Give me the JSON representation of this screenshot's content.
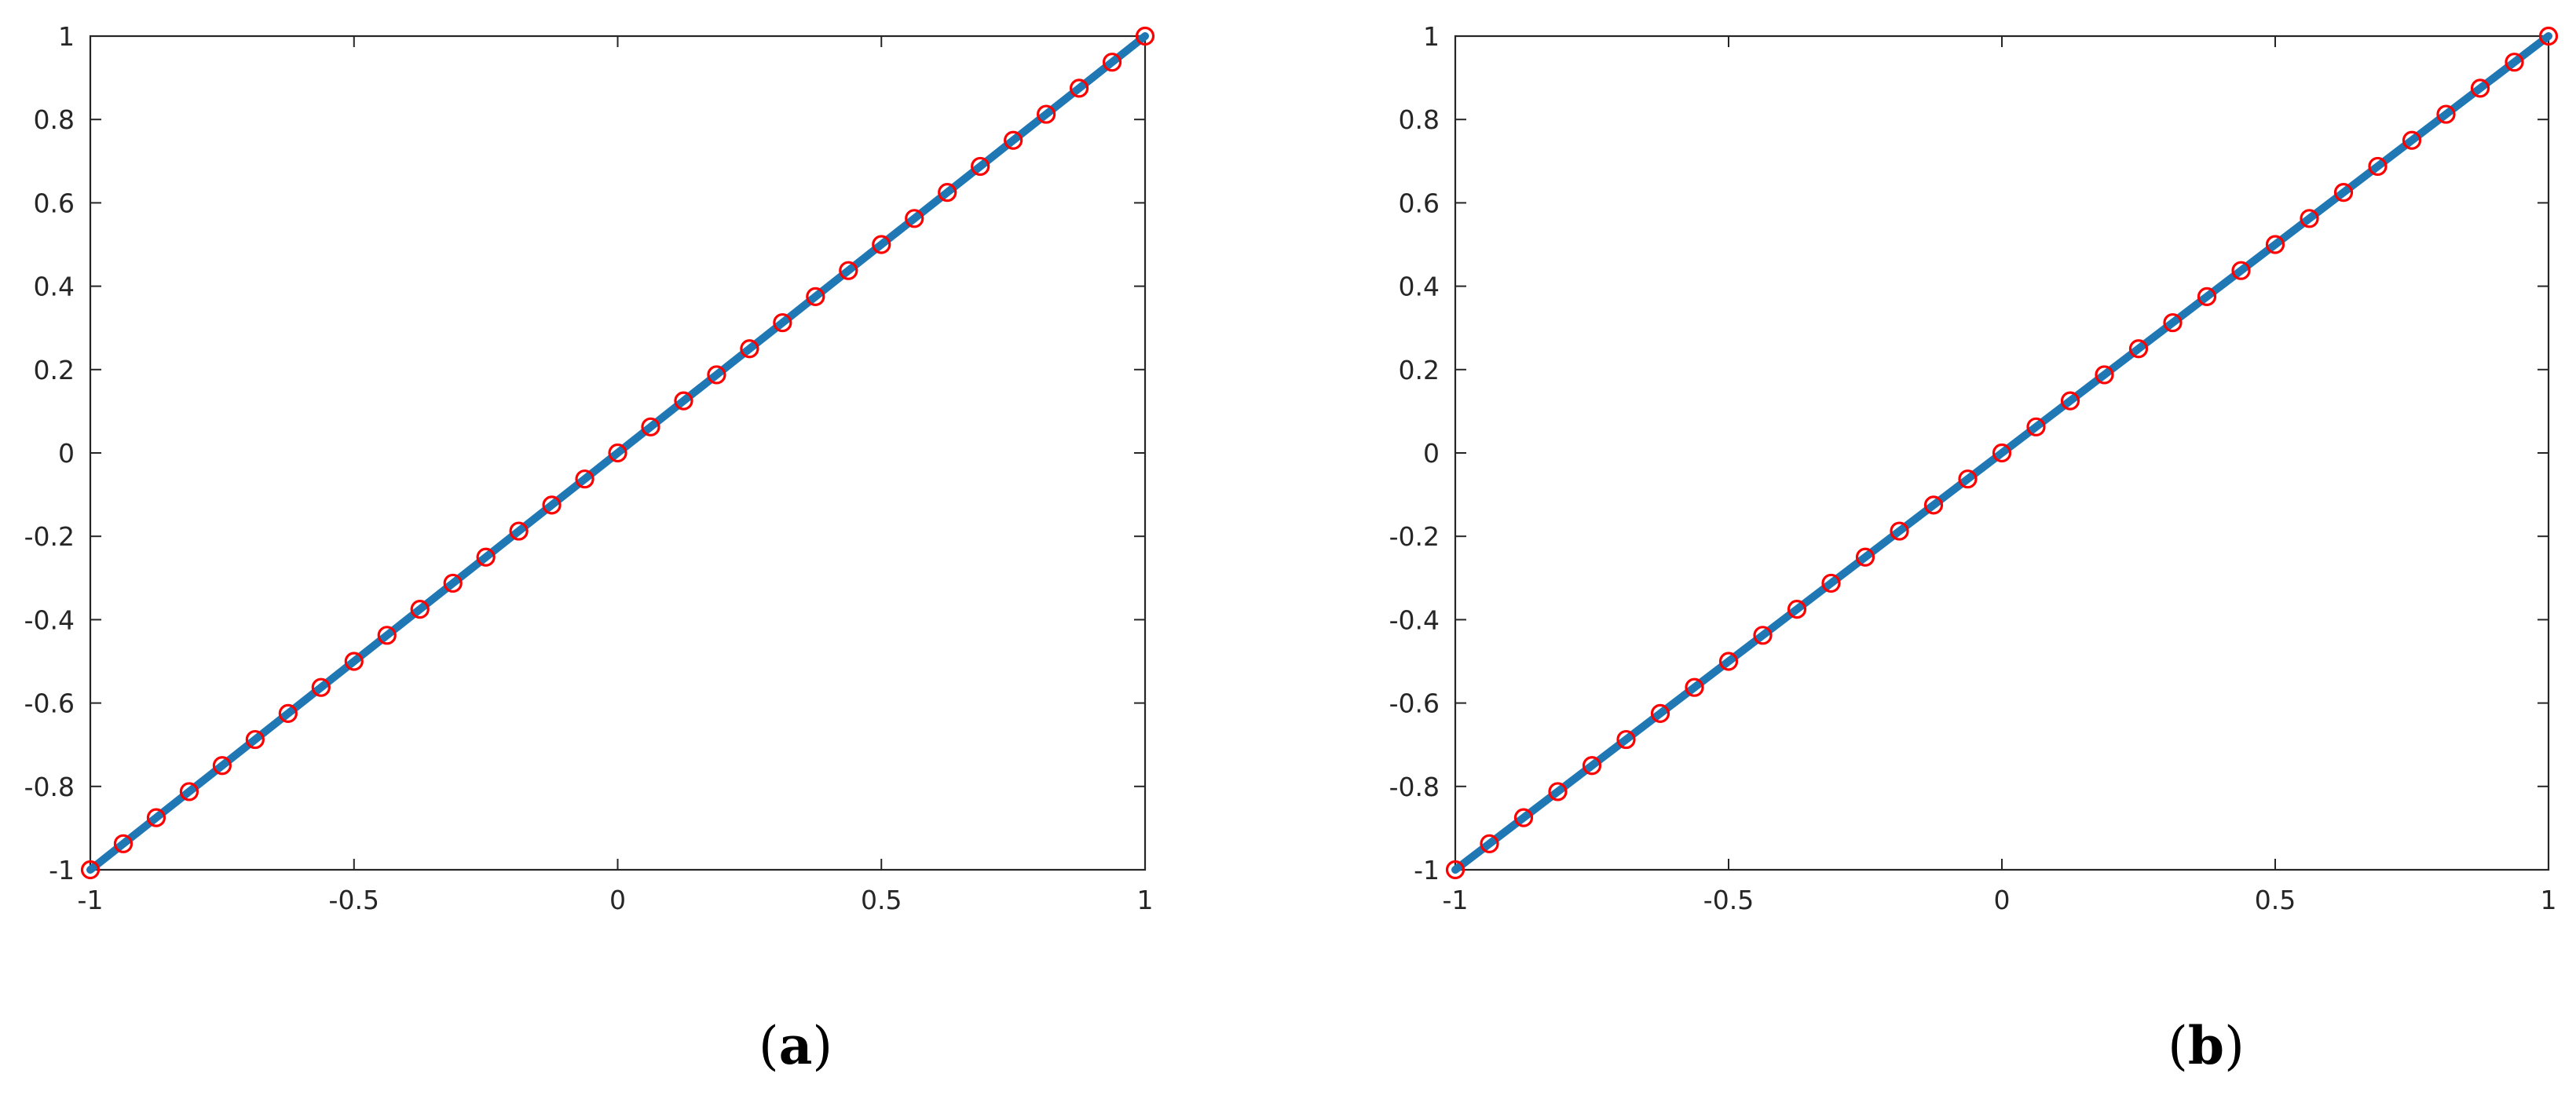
{
  "colors": {
    "line": "#1f77b4",
    "marker": "#ff0000",
    "axes": "#262626",
    "background": "#ffffff"
  },
  "chart_data": [
    {
      "type": "line",
      "panel_label": "a",
      "title": "",
      "xlabel": "",
      "ylabel": "",
      "xlim": [
        -1,
        1
      ],
      "ylim": [
        -1,
        1
      ],
      "grid": false,
      "xticks": [
        -1,
        -0.5,
        0,
        0.5,
        1
      ],
      "xtick_labels": [
        "-1",
        "-0.5",
        "0",
        "0.5",
        "1"
      ],
      "yticks": [
        -1,
        -0.8,
        -0.6,
        -0.4,
        -0.2,
        0,
        0.2,
        0.4,
        0.6,
        0.8,
        1
      ],
      "ytick_labels": [
        "-1",
        "-0.8",
        "-0.6",
        "-0.4",
        "-0.2",
        "0",
        "0.2",
        "0.4",
        "0.6",
        "0.8",
        "1"
      ],
      "series": [
        {
          "style": "solid line",
          "x": [
            -1,
            1
          ],
          "y": [
            -1,
            1
          ]
        },
        {
          "style": "circle markers",
          "x": [
            -1,
            -0.9375,
            -0.875,
            -0.8125,
            -0.75,
            -0.6875,
            -0.625,
            -0.5625,
            -0.5,
            -0.4375,
            -0.375,
            -0.3125,
            -0.25,
            -0.1875,
            -0.125,
            -0.0625,
            0,
            0.0625,
            0.125,
            0.1875,
            0.25,
            0.3125,
            0.375,
            0.4375,
            0.5,
            0.5625,
            0.625,
            0.6875,
            0.75,
            0.8125,
            0.875,
            0.9375,
            1
          ],
          "y": [
            -1,
            -0.9375,
            -0.875,
            -0.8125,
            -0.75,
            -0.6875,
            -0.625,
            -0.5625,
            -0.5,
            -0.4375,
            -0.375,
            -0.3125,
            -0.25,
            -0.1875,
            -0.125,
            -0.0625,
            0,
            0.0625,
            0.125,
            0.1875,
            0.25,
            0.3125,
            0.375,
            0.4375,
            0.5,
            0.5625,
            0.625,
            0.6875,
            0.75,
            0.8125,
            0.875,
            0.9375,
            1
          ]
        }
      ]
    },
    {
      "type": "line",
      "panel_label": "b",
      "title": "",
      "xlabel": "",
      "ylabel": "",
      "xlim": [
        -1,
        1
      ],
      "ylim": [
        -1,
        1
      ],
      "grid": false,
      "xticks": [
        -1,
        -0.5,
        0,
        0.5,
        1
      ],
      "xtick_labels": [
        "-1",
        "-0.5",
        "0",
        "0.5",
        "1"
      ],
      "yticks": [
        -1,
        -0.8,
        -0.6,
        -0.4,
        -0.2,
        0,
        0.2,
        0.4,
        0.6,
        0.8,
        1
      ],
      "ytick_labels": [
        "-1",
        "-0.8",
        "-0.6",
        "-0.4",
        "-0.2",
        "0",
        "0.2",
        "0.4",
        "0.6",
        "0.8",
        "1"
      ],
      "series": [
        {
          "style": "solid line",
          "x": [
            -1,
            1
          ],
          "y": [
            -1,
            1
          ]
        },
        {
          "style": "circle markers",
          "x": [
            -1,
            -0.9375,
            -0.875,
            -0.8125,
            -0.75,
            -0.6875,
            -0.625,
            -0.5625,
            -0.5,
            -0.4375,
            -0.375,
            -0.3125,
            -0.25,
            -0.1875,
            -0.125,
            -0.0625,
            0,
            0.0625,
            0.125,
            0.1875,
            0.25,
            0.3125,
            0.375,
            0.4375,
            0.5,
            0.5625,
            0.625,
            0.6875,
            0.75,
            0.8125,
            0.875,
            0.9375,
            1
          ],
          "y": [
            -1,
            -0.9375,
            -0.875,
            -0.8125,
            -0.75,
            -0.6875,
            -0.625,
            -0.5625,
            -0.5,
            -0.4375,
            -0.375,
            -0.3125,
            -0.25,
            -0.1875,
            -0.125,
            -0.0625,
            0,
            0.0625,
            0.125,
            0.1875,
            0.25,
            0.3125,
            0.375,
            0.4375,
            0.5,
            0.5625,
            0.625,
            0.6875,
            0.75,
            0.8125,
            0.875,
            0.9375,
            1
          ]
        }
      ]
    }
  ]
}
